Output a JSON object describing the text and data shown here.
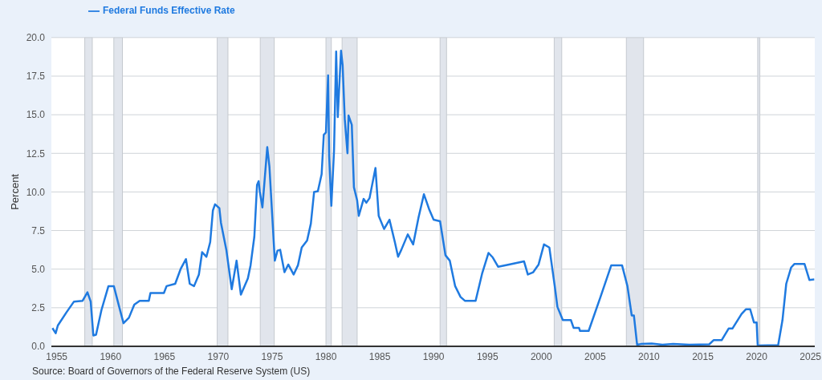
{
  "chart_data": {
    "type": "line",
    "ylabel": "Percent",
    "x": [
      1954.6,
      1954.9,
      1955.1,
      1955.9,
      1956.6,
      1957.4,
      1957.85,
      1958.15,
      1958.4,
      1958.65,
      1959.15,
      1959.8,
      1960.3,
      1960.8,
      1961.2,
      1961.7,
      1962.2,
      1962.7,
      1963.55,
      1963.7,
      1964.95,
      1965.2,
      1966.0,
      1966.5,
      1967.0,
      1967.35,
      1967.75,
      1968.2,
      1968.5,
      1968.9,
      1969.25,
      1969.5,
      1969.7,
      1970.1,
      1970.25,
      1970.75,
      1971.25,
      1971.7,
      1972.1,
      1972.75,
      1973.0,
      1973.35,
      1973.6,
      1973.75,
      1973.85,
      1974.1,
      1974.55,
      1974.75,
      1975.25,
      1975.5,
      1975.75,
      1976.15,
      1976.5,
      1977.0,
      1977.4,
      1977.75,
      1978.25,
      1978.6,
      1978.9,
      1979.25,
      1979.6,
      1979.8,
      1980.0,
      1980.2,
      1980.3,
      1980.5,
      1980.75,
      1980.95,
      1981.1,
      1981.4,
      1981.55,
      1981.75,
      1982.0,
      1982.1,
      1982.4,
      1982.6,
      1982.9,
      1983.05,
      1983.5,
      1983.75,
      1984.05,
      1984.6,
      1984.9,
      1985.4,
      1985.9,
      1986.4,
      1986.7,
      1987.0,
      1987.6,
      1988.1,
      1988.6,
      1989.1,
      1989.6,
      1990.0,
      1990.6,
      1991.1,
      1991.5,
      1992.0,
      1992.5,
      1992.9,
      1993.9,
      1994.5,
      1995.1,
      1995.5,
      1996.0,
      1997.0,
      1998.4,
      1998.75,
      1999.25,
      1999.75,
      2000.25,
      2000.75,
      2001.25,
      2001.5,
      2002.0,
      2002.75,
      2003.0,
      2003.5,
      2003.6,
      2004.4,
      2005.5,
      2006.5,
      2007.5,
      2008.0,
      2008.4,
      2008.6,
      2008.9,
      2009.25,
      2010.25,
      2011.25,
      2012.25,
      2013.75,
      2015.6,
      2016.0,
      2016.75,
      2017.4,
      2017.75,
      2018.6,
      2019.0,
      2019.4,
      2019.75,
      2020.0,
      2020.1,
      2022.0,
      2022.4,
      2022.75,
      2023.2,
      2023.5,
      2024.45,
      2024.9,
      2025.35
    ],
    "series": [
      {
        "name": "Federal Funds Effective Rate",
        "color": "#1f7ae0",
        "values": [
          1.18,
          0.85,
          1.35,
          2.2,
          2.9,
          2.95,
          3.5,
          2.9,
          0.7,
          0.75,
          2.35,
          3.9,
          3.9,
          2.55,
          1.5,
          1.85,
          2.7,
          2.95,
          2.95,
          3.45,
          3.45,
          3.9,
          4.05,
          5.0,
          5.65,
          4.05,
          3.9,
          4.65,
          6.1,
          5.8,
          6.75,
          8.8,
          9.2,
          8.95,
          8.0,
          6.25,
          3.7,
          5.55,
          3.35,
          4.4,
          5.25,
          7.1,
          10.45,
          10.7,
          10.05,
          9.0,
          12.9,
          11.65,
          5.55,
          6.2,
          6.25,
          4.8,
          5.3,
          4.65,
          5.25,
          6.4,
          6.85,
          7.95,
          10.0,
          10.05,
          11.15,
          13.7,
          13.85,
          17.55,
          12.3,
          9.1,
          12.65,
          19.1,
          14.85,
          19.15,
          18.2,
          14.7,
          12.5,
          14.95,
          14.35,
          10.3,
          9.45,
          8.45,
          9.55,
          9.3,
          9.6,
          11.55,
          8.45,
          7.6,
          8.2,
          6.75,
          5.8,
          6.25,
          7.25,
          6.6,
          8.35,
          9.85,
          8.85,
          8.2,
          8.1,
          5.9,
          5.55,
          3.9,
          3.2,
          2.95,
          2.95,
          4.7,
          6.05,
          5.75,
          5.15,
          5.3,
          5.5,
          4.65,
          4.8,
          5.3,
          6.6,
          6.4,
          3.9,
          2.55,
          1.7,
          1.7,
          1.2,
          1.2,
          1.0,
          1.0,
          3.2,
          5.25,
          5.25,
          3.9,
          2.0,
          2.0,
          0.1,
          0.15,
          0.18,
          0.1,
          0.15,
          0.1,
          0.13,
          0.4,
          0.4,
          1.15,
          1.15,
          2.1,
          2.4,
          2.4,
          1.55,
          1.55,
          0.05,
          0.08,
          1.7,
          4.05,
          5.1,
          5.33,
          5.33,
          4.3,
          4.33
        ]
      }
    ],
    "xlim": [
      1954.5,
      2025.4
    ],
    "xticks": [
      1955,
      1960,
      1965,
      1970,
      1975,
      1980,
      1985,
      1990,
      1995,
      2000,
      2005,
      2010,
      2015,
      2020,
      2025
    ],
    "ylim": [
      0,
      20
    ],
    "yticks": [
      {
        "value": 0,
        "label": "0.0"
      },
      2.5,
      {
        "value": 5,
        "label": "5.0"
      },
      7.5,
      {
        "value": 10,
        "label": "10.0"
      },
      12.5,
      {
        "value": 15,
        "label": "15.0"
      },
      17.5,
      {
        "value": 20,
        "label": "20.0"
      }
    ],
    "bands": [
      {
        "axis": "x",
        "from": 1957.6,
        "to": 1958.3,
        "color": "#e1e5ec"
      },
      {
        "axis": "x",
        "from": 1960.3,
        "to": 1961.1,
        "color": "#e1e5ec"
      },
      {
        "axis": "x",
        "from": 1969.9,
        "to": 1970.9,
        "color": "#e1e5ec"
      },
      {
        "axis": "x",
        "from": 1973.9,
        "to": 1975.2,
        "color": "#e1e5ec"
      },
      {
        "axis": "x",
        "from": 1980.0,
        "to": 1980.5,
        "color": "#e1e5ec"
      },
      {
        "axis": "x",
        "from": 1981.5,
        "to": 1982.9,
        "color": "#e1e5ec"
      },
      {
        "axis": "x",
        "from": 1990.6,
        "to": 1991.2,
        "color": "#e1e5ec"
      },
      {
        "axis": "x",
        "from": 2001.2,
        "to": 2001.9,
        "color": "#e1e5ec"
      },
      {
        "axis": "x",
        "from": 2007.9,
        "to": 2009.5,
        "color": "#e1e5ec"
      },
      {
        "axis": "x",
        "from": 2020.1,
        "to": 2020.3,
        "color": "#e1e5ec"
      }
    ],
    "grid": "y",
    "legend": "top left",
    "line_style": "solid",
    "annotations": [
      "Source: Board of Governors of the Federal Reserve System (US)"
    ]
  }
}
